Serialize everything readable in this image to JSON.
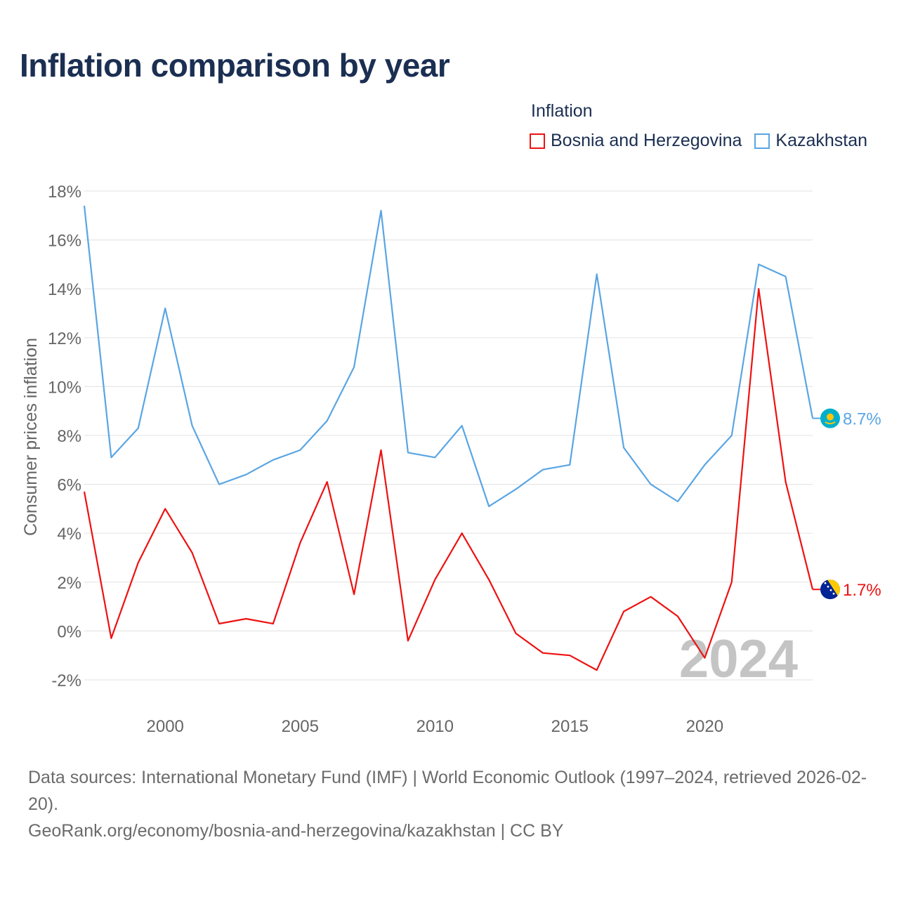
{
  "title": "Inflation comparison by year",
  "legend": {
    "title": "Inflation",
    "items": [
      {
        "label": "Bosnia and Herzegovina",
        "color": "#ee1111"
      },
      {
        "label": "Kazakhstan",
        "color": "#5aa5e3"
      }
    ]
  },
  "chart_data": {
    "type": "line",
    "ylabel": "Consumer prices inflation",
    "xlabel": "",
    "x": [
      1997,
      1998,
      1999,
      2000,
      2001,
      2002,
      2003,
      2004,
      2005,
      2006,
      2007,
      2008,
      2009,
      2010,
      2011,
      2012,
      2013,
      2014,
      2015,
      2016,
      2017,
      2018,
      2019,
      2020,
      2021,
      2022,
      2023,
      2024
    ],
    "xlim": [
      1997,
      2024
    ],
    "ylim": [
      -2,
      18
    ],
    "yticks": [
      -2,
      0,
      2,
      4,
      6,
      8,
      10,
      12,
      14,
      16,
      18
    ],
    "ytick_labels": [
      "-2%",
      "0%",
      "2%",
      "4%",
      "6%",
      "8%",
      "10%",
      "12%",
      "14%",
      "16%",
      "18%"
    ],
    "xticks": [
      2000,
      2005,
      2010,
      2015,
      2020
    ],
    "xtick_labels": [
      "2000",
      "2005",
      "2010",
      "2015",
      "2020"
    ],
    "grid": true,
    "series": [
      {
        "name": "Bosnia and Herzegovina",
        "color": "#ee1111",
        "values": [
          5.7,
          -0.3,
          2.8,
          5.0,
          3.2,
          0.3,
          0.5,
          0.3,
          3.6,
          6.1,
          1.5,
          7.4,
          -0.4,
          2.1,
          4.0,
          2.1,
          -0.1,
          -0.9,
          -1.0,
          -1.6,
          0.8,
          1.4,
          0.6,
          -1.1,
          2.0,
          14.0,
          6.1,
          1.7
        ],
        "end_label": "1.7%"
      },
      {
        "name": "Kazakhstan",
        "color": "#5aa5e3",
        "values": [
          17.4,
          7.1,
          8.3,
          13.2,
          8.4,
          6.0,
          6.4,
          7.0,
          7.4,
          8.6,
          10.8,
          17.2,
          7.3,
          7.1,
          8.4,
          5.1,
          5.8,
          6.6,
          6.8,
          14.6,
          7.5,
          6.0,
          5.3,
          6.8,
          8.0,
          15.0,
          14.5,
          8.7
        ],
        "end_label": "8.7%"
      }
    ],
    "watermark": "2024"
  },
  "footer": {
    "source": "Data sources: International Monetary Fund (IMF) | World Economic Outlook (1997–2024, retrieved 2026-02-20).",
    "credit": "GeoRank.org/economy/bosnia-and-herzegovina/kazakhstan | CC BY"
  }
}
